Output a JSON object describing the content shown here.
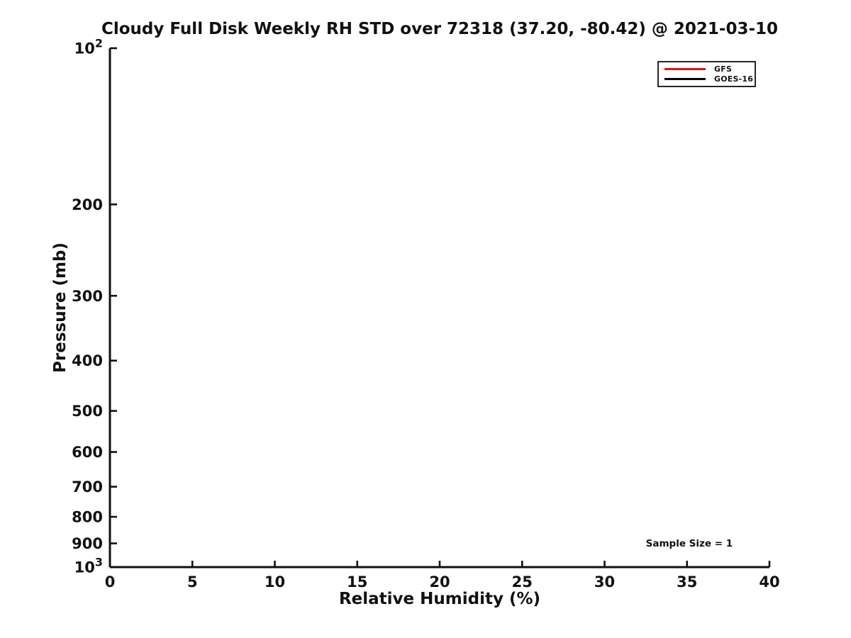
{
  "style": {
    "ink": "#111111",
    "background": "#ffffff",
    "accent_red": "#dd1111"
  },
  "chart_data": {
    "type": "line",
    "title": "Cloudy Full Disk Weekly RH STD over 72318 (37.20, -80.42) @ 2021-03-10",
    "xlabel": "Relative Humidity (%)",
    "ylabel": "Pressure (mb)",
    "xlim": [
      0,
      40
    ],
    "ylim": [
      100,
      1000
    ],
    "xscale": "linear",
    "yscale": "log",
    "y_axis_direction": "inverted (100 mb at top, 1000 mb at bottom)",
    "grid": false,
    "xticks": {
      "values": [
        0,
        5,
        10,
        15,
        20,
        25,
        30,
        35,
        40
      ],
      "labels": [
        "0",
        "5",
        "10",
        "15",
        "20",
        "25",
        "30",
        "35",
        "40"
      ]
    },
    "yticks": {
      "values": [
        100,
        200,
        300,
        400,
        500,
        600,
        700,
        800,
        900,
        1000
      ],
      "labels": [
        "10^2",
        "200",
        "300",
        "400",
        "500",
        "600",
        "700",
        "800",
        "900",
        "10^3"
      ]
    },
    "series": [
      {
        "name": "GFS",
        "color": "#dd1111",
        "x": [],
        "y": []
      },
      {
        "name": "GOES-16",
        "color": "#000000",
        "x": [],
        "y": []
      }
    ],
    "legend": {
      "position": "top-right",
      "entries": [
        "GFS",
        "GOES-16"
      ]
    },
    "annotations": [
      {
        "text": "Sample Size = 1",
        "x": 32.5,
        "y": 900,
        "ha": "left"
      }
    ]
  }
}
